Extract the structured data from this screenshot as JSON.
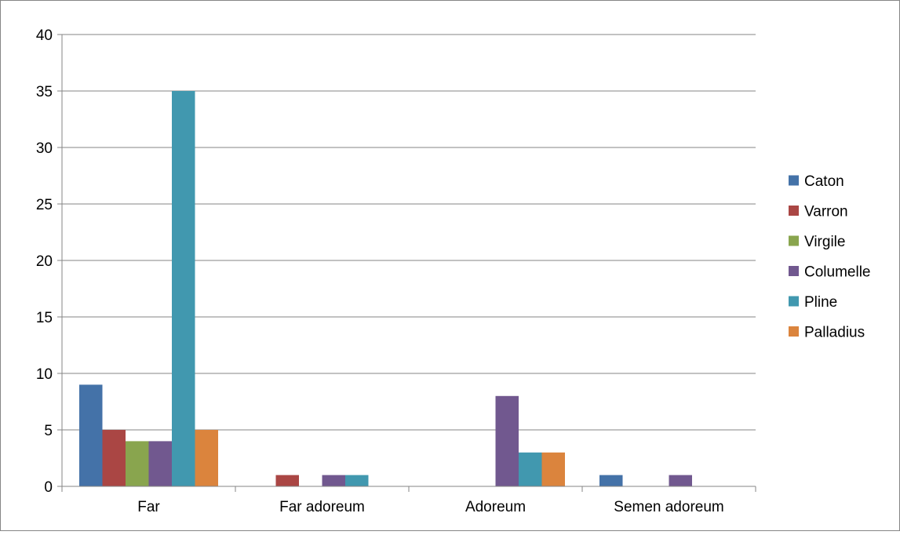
{
  "chart_data": {
    "type": "bar",
    "title": "",
    "xlabel": "",
    "ylabel": "",
    "categories": [
      "Far",
      "Far adoreum",
      "Adoreum",
      "Semen adoreum"
    ],
    "series": [
      {
        "name": "Caton",
        "color": "#4472a8",
        "values": [
          9,
          0,
          0,
          1
        ]
      },
      {
        "name": "Varron",
        "color": "#aa4644",
        "values": [
          5,
          1,
          0,
          0
        ]
      },
      {
        "name": "Virgile",
        "color": "#89a54e",
        "values": [
          4,
          0,
          0,
          0
        ]
      },
      {
        "name": "Columelle",
        "color": "#71588f",
        "values": [
          4,
          1,
          8,
          1
        ]
      },
      {
        "name": "Pline",
        "color": "#4198af",
        "values": [
          35,
          1,
          3,
          0
        ]
      },
      {
        "name": "Palladius",
        "color": "#db843d",
        "values": [
          5,
          0,
          3,
          0
        ]
      }
    ],
    "ylim": [
      0,
      40
    ],
    "yticks": [
      0,
      5,
      10,
      15,
      20,
      25,
      30,
      35,
      40
    ],
    "grid": true,
    "legend_position": "right"
  }
}
